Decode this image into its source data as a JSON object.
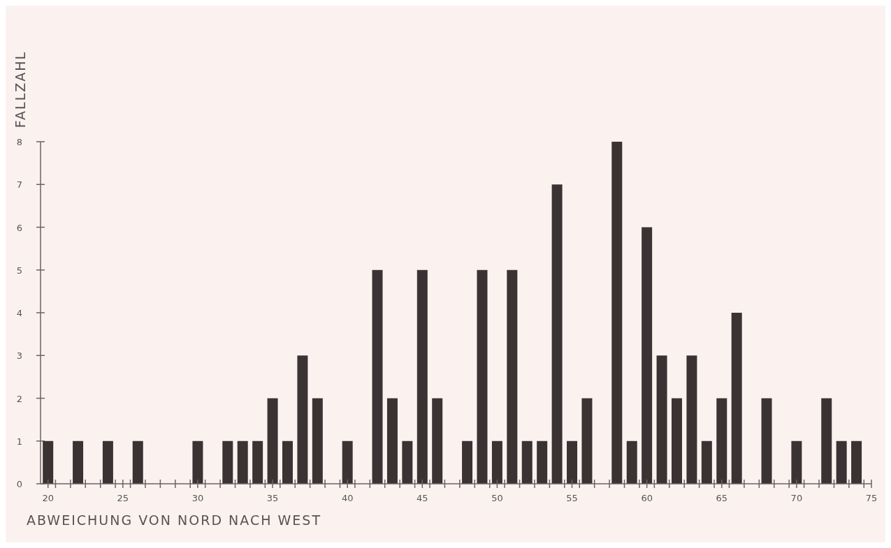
{
  "chart_data": {
    "type": "bar",
    "xlabel": "ABWEICHUNG VON NORD NACH WEST",
    "ylabel": "FALLZAHL",
    "color": "#3b3234",
    "x": [
      20,
      22,
      24,
      26,
      30,
      32,
      33,
      34,
      35,
      36,
      37,
      38,
      40,
      42,
      43,
      44,
      45,
      46,
      48,
      49,
      50,
      51,
      52,
      53,
      54,
      55,
      56,
      58,
      59,
      60,
      61,
      62,
      63,
      64,
      65,
      66,
      68,
      70,
      72,
      73,
      74
    ],
    "values": [
      1,
      1,
      1,
      1,
      1,
      1,
      1,
      1,
      2,
      1,
      3,
      2,
      1,
      5,
      2,
      1,
      5,
      2,
      1,
      5,
      1,
      5,
      1,
      1,
      7,
      1,
      2,
      8,
      1,
      6,
      3,
      2,
      3,
      1,
      2,
      4,
      2,
      1,
      2,
      1,
      1
    ],
    "xlim": [
      19.5,
      75
    ],
    "ylim": [
      0,
      8
    ],
    "yticks": [
      0,
      1,
      2,
      3,
      4,
      5,
      6,
      7,
      8
    ],
    "xticks": [
      20,
      25,
      30,
      35,
      40,
      45,
      50,
      55,
      60,
      65,
      70,
      75,
      {
        "value": 20.5,
        "label": null
      },
      {
        "value": 21.5,
        "label": null
      },
      {
        "value": 22.5,
        "label": null
      },
      {
        "value": 23.5,
        "label": null
      },
      {
        "value": 24.5,
        "label": null
      },
      {
        "value": 25.5,
        "label": null
      },
      {
        "value": 26.5,
        "label": null
      },
      {
        "value": 27.5,
        "label": null
      },
      {
        "value": 28.5,
        "label": null
      },
      {
        "value": 29.5,
        "label": null
      },
      {
        "value": 30.5,
        "label": null
      },
      {
        "value": 31.5,
        "label": null
      },
      {
        "value": 32.5,
        "label": null
      },
      {
        "value": 33.5,
        "label": null
      },
      {
        "value": 34.5,
        "label": null
      },
      {
        "value": 35.5,
        "label": null
      },
      {
        "value": 36.5,
        "label": null
      },
      {
        "value": 37.5,
        "label": null
      },
      {
        "value": 38.5,
        "label": null
      },
      {
        "value": 39.5,
        "label": null
      },
      {
        "value": 40.5,
        "label": null
      },
      {
        "value": 41.5,
        "label": null
      },
      {
        "value": 42.5,
        "label": null
      },
      {
        "value": 43.5,
        "label": null
      },
      {
        "value": 44.5,
        "label": null
      },
      {
        "value": 45.5,
        "label": null
      },
      {
        "value": 46.5,
        "label": null
      },
      {
        "value": 47.5,
        "label": null
      },
      {
        "value": 48.5,
        "label": null
      },
      {
        "value": 49.5,
        "label": null
      },
      {
        "value": 50.5,
        "label": null
      },
      {
        "value": 51.5,
        "label": null
      },
      {
        "value": 52.5,
        "label": null
      },
      {
        "value": 53.5,
        "label": null
      },
      {
        "value": 54.5,
        "label": null
      },
      {
        "value": 55.5,
        "label": null
      },
      {
        "value": 56.5,
        "label": null
      },
      {
        "value": 57.5,
        "label": null
      },
      {
        "value": 58.5,
        "label": null
      },
      {
        "value": 59.5,
        "label": null
      },
      {
        "value": 60.5,
        "label": null
      },
      {
        "value": 61.5,
        "label": null
      },
      {
        "value": 62.5,
        "label": null
      },
      {
        "value": 63.5,
        "label": null
      },
      {
        "value": 64.5,
        "label": null
      },
      {
        "value": 65.5,
        "label": null
      },
      {
        "value": 66.5,
        "label": null
      },
      {
        "value": 67.5,
        "label": null
      },
      {
        "value": 68.5,
        "label": null
      },
      {
        "value": 69.5,
        "label": null
      },
      {
        "value": 70.5,
        "label": null
      },
      {
        "value": 71.5,
        "label": null
      },
      {
        "value": 72.5,
        "label": null
      },
      {
        "value": 73.5,
        "label": null
      },
      {
        "value": 74.5,
        "label": null
      }
    ]
  }
}
